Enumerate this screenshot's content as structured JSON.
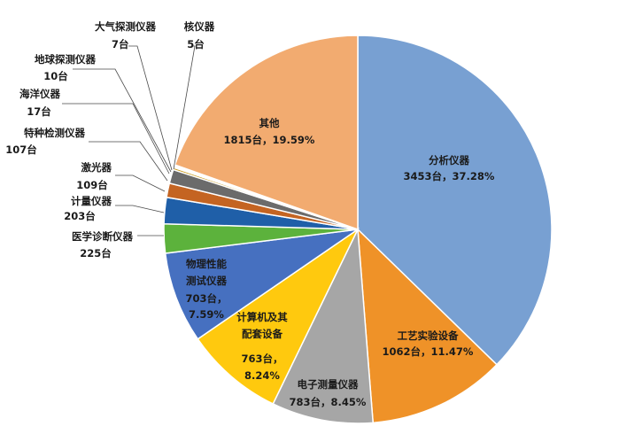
{
  "chart_data": {
    "type": "pie",
    "title": "",
    "series": [
      {
        "name": "分析仪器",
        "value": 3453,
        "display": "3453台，37.28%",
        "color": "#78a0d2"
      },
      {
        "name": "工艺实验设备",
        "value": 1062,
        "display": "1062台，11.47%",
        "color": "#ef9228"
      },
      {
        "name": "电子测量仪器",
        "value": 783,
        "display": "783台，8.45%",
        "color": "#a6a6a6"
      },
      {
        "name": "计算机及其配套设备",
        "value": 763,
        "display": "763台，8.24%",
        "color": "#ffc90e"
      },
      {
        "name": "物理性能测试仪器",
        "value": 703,
        "display": "703台，7.59%",
        "color": "#4670c0"
      },
      {
        "name": "医学诊断仪器",
        "value": 225,
        "display": "225台",
        "color": "#5cb23c"
      },
      {
        "name": "计量仪器",
        "value": 203,
        "display": "203台",
        "color": "#1f5fa8"
      },
      {
        "name": "激光器",
        "value": 109,
        "display": "109台",
        "color": "#c46422"
      },
      {
        "name": "特种检测仪器",
        "value": 107,
        "display": "107台",
        "color": "#6b6b6b"
      },
      {
        "name": "海洋仪器",
        "value": 17,
        "display": "17台",
        "color": "#c79a1e"
      },
      {
        "name": "地球探测仪器",
        "value": 10,
        "display": "10台",
        "color": "#2c4f8c"
      },
      {
        "name": "大气探测仪器",
        "value": 7,
        "display": "7台",
        "color": "#3f8a3c"
      },
      {
        "name": "核仪器",
        "value": 5,
        "display": "5台",
        "color": "#8a3a1e"
      },
      {
        "name": "其他",
        "value": 1815,
        "display": "1815台，19.59%",
        "color": "#f2ab70"
      }
    ],
    "start_angle_deg": 0,
    "direction": "clockwise",
    "legend": "none"
  },
  "labels": {
    "fenxi_name": "分析仪器",
    "fenxi_value": "3453台，37.28%",
    "gongyi_name": "工艺实验设备",
    "gongyi_value": "1062台，11.47%",
    "dianzi_name": "电子测量仪器",
    "dianzi_value": "783台，8.45%",
    "jisuanji_line1": "计算机及其",
    "jisuanji_line2": "配套设备",
    "jisuanji_line3": "763台，",
    "jisuanji_line4": "8.24%",
    "wuli_line1": "物理性能",
    "wuli_line2": "测试仪器",
    "wuli_line3": "703台，",
    "wuli_line4": "7.59%",
    "qita_name": "其他",
    "qita_value": "1815台，19.59%",
    "yixue_name": "医学诊断仪器",
    "yixue_value": "225台",
    "jiliang_name": "计量仪器",
    "jiliang_value": "203台",
    "jiguang_name": "激光器",
    "jiguang_value": "109台",
    "tezhong_name": "特种检测仪器",
    "tezhong_value": "107台",
    "haiyang_name": "海洋仪器",
    "haiyang_value": "17台",
    "diqiu_name": "地球探测仪器",
    "diqiu_value": "10台",
    "daqi_name": "大气探测仪器",
    "daqi_value": "7台",
    "he_name": "核仪器",
    "he_value": "5台"
  }
}
